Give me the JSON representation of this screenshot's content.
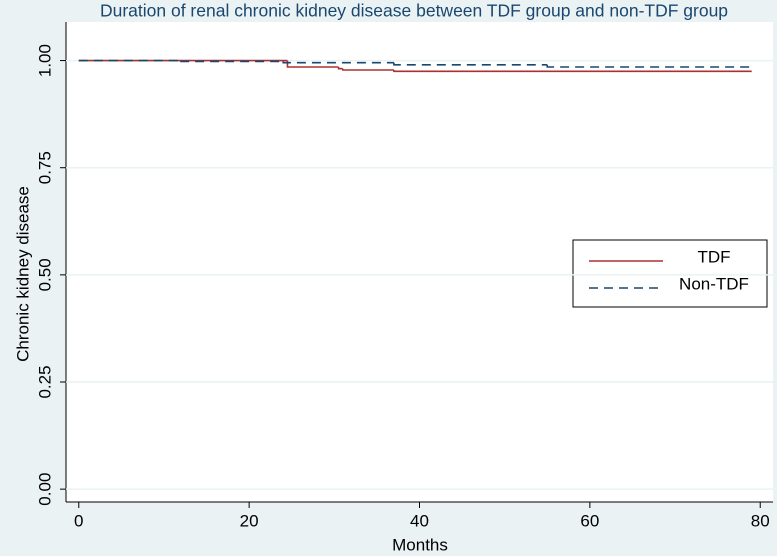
{
  "chart_data": {
    "type": "step",
    "title": "Duration of renal chronic kidney disease between TDF group and non-TDF group",
    "x_label": "Months",
    "y_label": "Chronic kidney disease",
    "xlim": [
      -1.5,
      81.5
    ],
    "xticks": [
      0,
      20,
      40,
      60,
      80
    ],
    "ylim": [
      -0.03,
      1.09
    ],
    "yticks": [
      {
        "value": 0,
        "label": "0.00"
      },
      {
        "value": 0.25,
        "label": "0.25"
      },
      {
        "value": 0.5,
        "label": "0.50"
      },
      {
        "value": 0.75,
        "label": "0.75"
      },
      {
        "value": 1,
        "label": "1.00"
      }
    ],
    "grid": true,
    "legend_position": "right",
    "series": [
      {
        "name": "TDF",
        "color": "#a83232",
        "dash": false,
        "x": [
          0,
          24.5,
          30.5,
          31,
          37,
          79
        ],
        "values": [
          1,
          0.985,
          0.981,
          0.978,
          0.975,
          0.975
        ]
      },
      {
        "name": "Non-TDF",
        "color": "#1a476f",
        "dash": true,
        "x": [
          0,
          12,
          24,
          37,
          55,
          79
        ],
        "values": [
          1,
          0.998,
          0.995,
          0.99,
          0.985,
          0.985
        ]
      }
    ]
  }
}
